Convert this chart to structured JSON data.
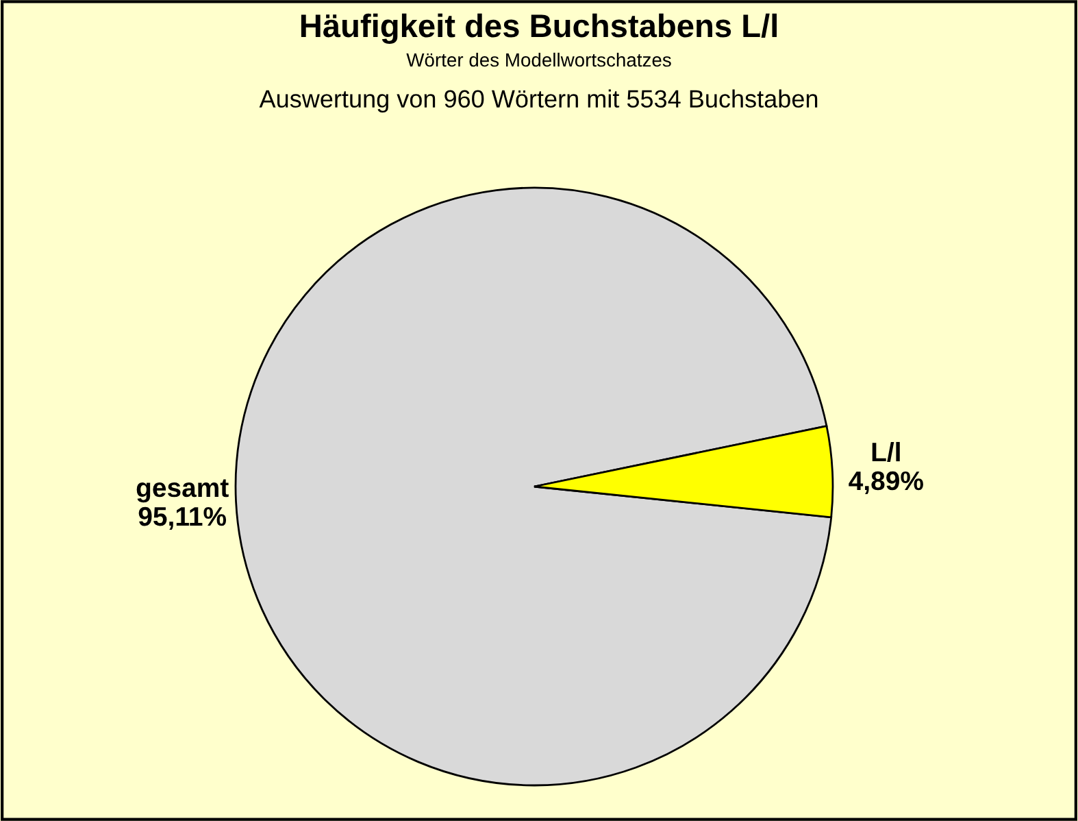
{
  "chart_data": {
    "type": "pie",
    "title": "Häufigkeit des Buchstabens L/l",
    "subtitle": "Wörter des Modellwortschatzes",
    "annotations": [
      "Auswertung von 960 Wörtern mit 5534 Buchstaben"
    ],
    "categories": [
      "gesamt",
      "L/l"
    ],
    "values": [
      95.11,
      4.89
    ],
    "value_labels": [
      "95,11%",
      "4,89%"
    ],
    "colors": [
      "#d9d9d9",
      "#ffff00"
    ],
    "legend": false
  }
}
